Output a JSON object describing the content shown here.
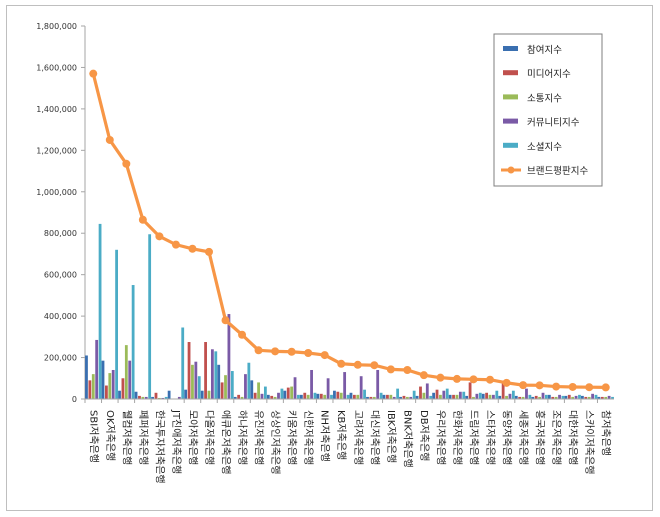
{
  "chart_data": {
    "type": "bar",
    "title": "",
    "xlabel": "",
    "ylabel": "",
    "ylim": [
      0,
      1800000
    ],
    "yticks": [
      "0",
      "200,000",
      "400,000",
      "600,000",
      "800,000",
      "1,000,000",
      "1,200,000",
      "1,400,000",
      "1,600,000",
      "1,800,000"
    ],
    "categories": [
      "SBI저축은행",
      "OK저축은행",
      "웰컴저축은행",
      "페퍼저축은행",
      "한국투자저축은행",
      "JT친애저축은행",
      "모아저축은행",
      "다올저축은행",
      "애큐온저축은행",
      "하나저축은행",
      "유진저축은행",
      "상상인저축은행",
      "키움저축은행",
      "신한저축은행",
      "NH저축은행",
      "KB저축은행",
      "고려저축은행",
      "대신저축은행",
      "IBK저축은행",
      "BNK저축은행",
      "DB저축은행",
      "우리저축은행",
      "한화저축은행",
      "드림저축은행",
      "스타저축은행",
      "동양저축은행",
      "세종저축은행",
      "흥국저축은행",
      "조은저축은행",
      "대한저축은행",
      "스카이저축은행",
      "참저축은행"
    ],
    "series": [
      {
        "name": "참여지수",
        "color": "#3a6fb0",
        "values": [
          210000,
          185000,
          40000,
          35000,
          10000,
          40000,
          45000,
          40000,
          165000,
          10000,
          90000,
          20000,
          40000,
          20000,
          25000,
          40000,
          30000,
          10000,
          20000,
          10000,
          15000,
          30000,
          20000,
          15000,
          25000,
          15000,
          15000,
          10000,
          20000,
          15000,
          15000,
          10000
        ]
      },
      {
        "name": "미디어지수",
        "color": "#c0504d",
        "values": [
          90000,
          65000,
          100000,
          15000,
          30000,
          0,
          275000,
          275000,
          80000,
          20000,
          30000,
          15000,
          55000,
          30000,
          25000,
          35000,
          20000,
          10000,
          20000,
          15000,
          60000,
          45000,
          20000,
          80000,
          30000,
          80000,
          10000,
          15000,
          10000,
          20000,
          10000,
          10000
        ]
      },
      {
        "name": "소통지수",
        "color": "#9bbb59",
        "values": [
          120000,
          125000,
          260000,
          10000,
          5000,
          0,
          165000,
          40000,
          115000,
          10000,
          80000,
          10000,
          60000,
          20000,
          20000,
          30000,
          20000,
          10000,
          20000,
          10000,
          30000,
          20000,
          20000,
          10000,
          20000,
          15000,
          10000,
          10000,
          10000,
          10000,
          10000,
          10000
        ]
      },
      {
        "name": "커뮤니티지수",
        "color": "#7a5aa6",
        "values": [
          285000,
          140000,
          185000,
          10000,
          5000,
          10000,
          180000,
          240000,
          410000,
          120000,
          25000,
          30000,
          105000,
          140000,
          100000,
          130000,
          110000,
          140000,
          10000,
          10000,
          75000,
          40000,
          35000,
          25000,
          20000,
          25000,
          50000,
          30000,
          20000,
          15000,
          25000,
          15000
        ]
      },
      {
        "name": "소셜지수",
        "color": "#4bacc6",
        "values": [
          845000,
          720000,
          550000,
          795000,
          10000,
          345000,
          110000,
          230000,
          135000,
          175000,
          60000,
          50000,
          20000,
          30000,
          20000,
          20000,
          45000,
          30000,
          50000,
          40000,
          15000,
          50000,
          35000,
          30000,
          40000,
          40000,
          20000,
          20000,
          15000,
          20000,
          20000,
          10000
        ]
      },
      {
        "name": "브랜드평판지수",
        "color": "#f79646",
        "values": [
          1570000,
          1250000,
          1135000,
          865000,
          785000,
          745000,
          725000,
          710000,
          380000,
          310000,
          235000,
          230000,
          228000,
          222000,
          212000,
          170000,
          165000,
          163000,
          143000,
          140000,
          115000,
          103000,
          97000,
          95000,
          93000,
          78000,
          67000,
          66000,
          60000,
          58000,
          57000,
          56000
        ]
      }
    ],
    "legend_position": "top-right",
    "grid": false
  }
}
